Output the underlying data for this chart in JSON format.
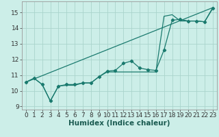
{
  "xlabel": "Humidex (Indice chaleur)",
  "xlim": [
    -0.5,
    23.5
  ],
  "ylim": [
    8.8,
    15.7
  ],
  "bg_color": "#cceee8",
  "line_color": "#1a7a6e",
  "grid_color": "#aad4cc",
  "line1_x": [
    0,
    1,
    2,
    3,
    4,
    5,
    6,
    7,
    8,
    9,
    10,
    11,
    12,
    13,
    14,
    15,
    16,
    17,
    18,
    19,
    20,
    21,
    22,
    23
  ],
  "line1_y": [
    10.55,
    10.8,
    10.4,
    9.35,
    10.3,
    10.4,
    10.4,
    10.5,
    10.5,
    10.9,
    11.25,
    11.3,
    11.75,
    11.9,
    11.45,
    11.35,
    11.3,
    12.6,
    14.5,
    14.55,
    14.45,
    14.45,
    14.4,
    15.25
  ],
  "line2_x": [
    0,
    1,
    2,
    3,
    4,
    5,
    6,
    7,
    8,
    9,
    10,
    11,
    12,
    13,
    14,
    15,
    16,
    17,
    18,
    19,
    20,
    21,
    22,
    23
  ],
  "line2_y": [
    10.55,
    10.8,
    10.4,
    9.35,
    10.3,
    10.35,
    10.35,
    10.5,
    10.5,
    10.9,
    11.2,
    11.2,
    11.2,
    11.2,
    11.2,
    11.2,
    11.2,
    14.75,
    14.85,
    14.45,
    14.45,
    14.45,
    14.4,
    15.3
  ],
  "line3_x": [
    0,
    23
  ],
  "line3_y": [
    10.55,
    15.3
  ],
  "xticks": [
    0,
    1,
    2,
    3,
    4,
    5,
    6,
    7,
    8,
    9,
    10,
    11,
    12,
    13,
    14,
    15,
    16,
    17,
    18,
    19,
    20,
    21,
    22,
    23
  ],
  "yticks": [
    9,
    10,
    11,
    12,
    13,
    14,
    15
  ],
  "tick_fontsize": 6.5,
  "label_fontsize": 7.5
}
